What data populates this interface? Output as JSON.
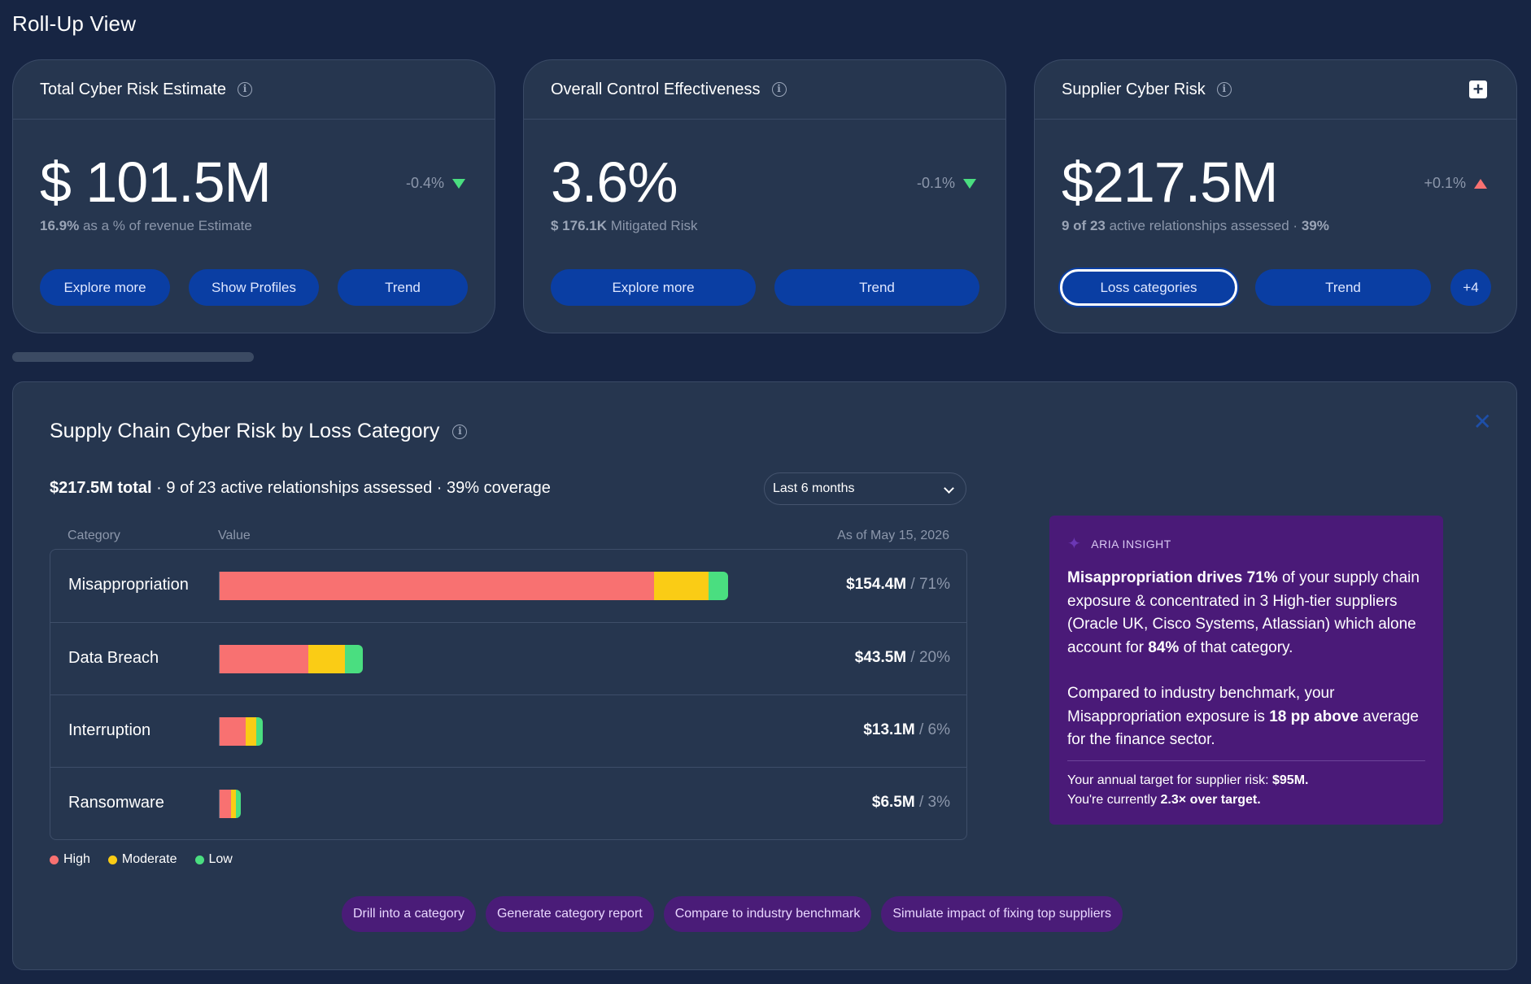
{
  "page": {
    "title": "Roll-Up View"
  },
  "cards": [
    {
      "title": "Total Cyber Risk Estimate",
      "value": "$ 101.5M",
      "delta": "-0.4%",
      "delta_direction": "down",
      "sub_strong": "16.9%",
      "sub_text": "as a % of revenue Estimate",
      "buttons": [
        "Explore more",
        "Show Profiles",
        "Trend"
      ]
    },
    {
      "title": "Overall Control Effectiveness",
      "value": "3.6%",
      "delta": "-0.1%",
      "delta_direction": "down",
      "sub_strong": "$ 176.1K",
      "sub_text": "Mitigated Risk",
      "buttons": [
        "Explore more",
        "Trend"
      ]
    },
    {
      "title": "Supplier Cyber Risk",
      "value": "$217.5M",
      "delta": "+0.1%",
      "delta_direction": "up",
      "sub_strong": "9 of 23",
      "sub_text": "active relationships assessed ·",
      "sub_strong2": "39%",
      "buttons": [
        "Loss categories",
        "Trend",
        "+4"
      ]
    }
  ],
  "panel": {
    "title": "Supply Chain Cyber Risk by Loss Category",
    "summary_strong": "$217.5M total",
    "summary_text": "· 9 of 23 active relationships assessed · 39% coverage",
    "period_select": "Last 6 months",
    "columns": {
      "category": "Category",
      "value": "Value",
      "as_of": "As of May 15, 2026"
    },
    "legend": [
      {
        "label": "High",
        "color": "#f87171"
      },
      {
        "label": "Moderate",
        "color": "#facc15"
      },
      {
        "label": "Low",
        "color": "#4ade80"
      }
    ],
    "actions": [
      "Drill into a category",
      "Generate category report",
      "Compare to industry benchmark",
      "Simulate impact of fixing top suppliers"
    ]
  },
  "chart_data": {
    "type": "bar",
    "orientation": "horizontal",
    "stacked": true,
    "categories": [
      "Misappropriation",
      "Data Breach",
      "Interruption",
      "Ransomware"
    ],
    "series": [
      {
        "name": "High",
        "values": [
          132,
          27,
          8,
          3.5
        ]
      },
      {
        "name": "Moderate",
        "values": [
          16.5,
          11,
          3,
          1.5
        ]
      },
      {
        "name": "Low",
        "values": [
          5.9,
          5.5,
          2.1,
          1.5
        ]
      }
    ],
    "totals_label": [
      "$154.4M",
      "$43.5M",
      "$13.1M",
      "$6.5M"
    ],
    "share_label": [
      "/ 71%",
      "/ 20%",
      "/ 6%",
      "/ 3%"
    ],
    "unit": "$M",
    "colors": [
      "#f87171",
      "#facc15",
      "#4ade80"
    ]
  },
  "insight": {
    "label": "ARIA INSIGHT",
    "p1_a": "Misappropriation drives 71%",
    "p1_b": " of your supply chain exposure & concentrated in 3 High-tier suppliers (Oracle UK, Cisco Systems, Atlassian) which alone account for ",
    "p1_c": "84%",
    "p1_d": " of that category.",
    "p2_a": "Compared to industry benchmark, your Misappropriation exposure is ",
    "p2_b": "18 pp above",
    "p2_c": " average for the finance sector.",
    "foot_a": "Your annual target for supplier risk: ",
    "foot_b": "$95M.",
    "foot_c": "You're currently ",
    "foot_d": "2.3× over target."
  }
}
